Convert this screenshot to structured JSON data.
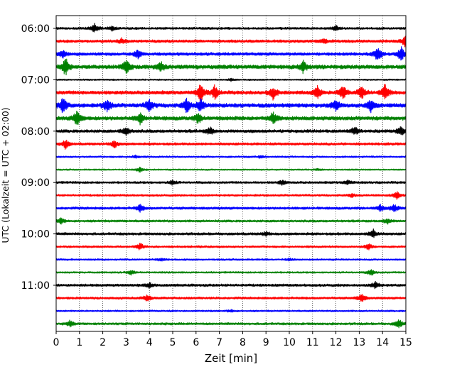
{
  "chart_data": {
    "type": "line",
    "subtype": "seismogram-helicorder",
    "xlabel": "Zeit  [min]",
    "ylabel": "UTC (Lokalzeit = UTC + 02:00)",
    "xlim": [
      0,
      15
    ],
    "x_ticks": [
      0,
      1,
      2,
      3,
      4,
      5,
      6,
      7,
      8,
      9,
      10,
      11,
      12,
      13,
      14,
      15
    ],
    "x_tick_labels": [
      "0",
      "1",
      "2",
      "3",
      "4",
      "5",
      "6",
      "7",
      "8",
      "9",
      "10",
      "11",
      "12",
      "13",
      "14",
      "15"
    ],
    "y_tick_labels": [
      "06:00",
      "07:00",
      "08:00",
      "09:00",
      "10:00",
      "11:00"
    ],
    "vertical_grid": true,
    "grid_style": "dotted",
    "row_minutes": 15,
    "color_cycle": [
      "#000000",
      "#ff0000",
      "#0000ff",
      "#008000"
    ],
    "traces": [
      {
        "start": "06:00",
        "color": "#000000",
        "amp": 0.45,
        "bursts": [
          [
            1.65,
            1.3
          ],
          [
            12.0,
            0.7
          ],
          [
            2.4,
            0.5
          ]
        ]
      },
      {
        "start": "06:15",
        "color": "#ff0000",
        "amp": 0.55,
        "bursts": [
          [
            15.0,
            1.5
          ],
          [
            2.8,
            0.6
          ],
          [
            11.5,
            0.6
          ]
        ]
      },
      {
        "start": "06:30",
        "color": "#0000ff",
        "amp": 0.6,
        "bursts": [
          [
            0.3,
            1.0
          ],
          [
            3.5,
            0.9
          ],
          [
            13.8,
            1.8
          ],
          [
            14.8,
            1.5
          ]
        ]
      },
      {
        "start": "06:45",
        "color": "#008000",
        "amp": 0.8,
        "bursts": [
          [
            0.4,
            1.4
          ],
          [
            3.0,
            1.2
          ],
          [
            4.5,
            0.8
          ],
          [
            10.6,
            0.9
          ]
        ]
      },
      {
        "start": "07:00",
        "color": "#000000",
        "amp": 0.3,
        "bursts": [
          [
            7.5,
            0.5
          ]
        ]
      },
      {
        "start": "07:15",
        "color": "#ff0000",
        "amp": 0.7,
        "bursts": [
          [
            6.2,
            1.6
          ],
          [
            6.8,
            1.2
          ],
          [
            9.3,
            1.2
          ],
          [
            11.2,
            1.1
          ],
          [
            12.3,
            1.3
          ],
          [
            13.1,
            1.1
          ],
          [
            14.1,
            1.6
          ]
        ]
      },
      {
        "start": "07:30",
        "color": "#0000ff",
        "amp": 0.8,
        "bursts": [
          [
            0.3,
            1.3
          ],
          [
            2.2,
            1.0
          ],
          [
            4.0,
            0.9
          ],
          [
            5.6,
            1.1
          ],
          [
            6.2,
            1.0
          ],
          [
            12.0,
            0.9
          ],
          [
            13.5,
            0.9
          ]
        ]
      },
      {
        "start": "07:45",
        "color": "#008000",
        "amp": 0.75,
        "bursts": [
          [
            0.9,
            1.4
          ],
          [
            3.6,
            0.9
          ],
          [
            6.1,
            0.8
          ],
          [
            9.3,
            1.1
          ]
        ]
      },
      {
        "start": "08:00",
        "color": "#000000",
        "amp": 0.6,
        "bursts": [
          [
            3.0,
            0.9
          ],
          [
            6.6,
            0.8
          ],
          [
            12.8,
            0.9
          ],
          [
            14.8,
            1.1
          ]
        ]
      },
      {
        "start": "08:15",
        "color": "#ff0000",
        "amp": 0.5,
        "bursts": [
          [
            0.4,
            1.2
          ],
          [
            2.5,
            1.0
          ]
        ]
      },
      {
        "start": "08:30",
        "color": "#0000ff",
        "amp": 0.35,
        "bursts": [
          [
            3.4,
            0.5
          ],
          [
            8.8,
            0.4
          ]
        ]
      },
      {
        "start": "08:45",
        "color": "#008000",
        "amp": 0.3,
        "bursts": [
          [
            3.6,
            1.2
          ],
          [
            11.2,
            0.4
          ]
        ]
      },
      {
        "start": "09:00",
        "color": "#000000",
        "amp": 0.45,
        "bursts": [
          [
            5.0,
            0.7
          ],
          [
            9.7,
            0.7
          ],
          [
            12.5,
            0.6
          ]
        ]
      },
      {
        "start": "09:15",
        "color": "#ff0000",
        "amp": 0.4,
        "bursts": [
          [
            14.6,
            1.3
          ],
          [
            12.7,
            0.5
          ]
        ]
      },
      {
        "start": "09:30",
        "color": "#0000ff",
        "amp": 0.5,
        "bursts": [
          [
            3.6,
            0.9
          ],
          [
            13.9,
            0.8
          ],
          [
            14.5,
            1.0
          ]
        ]
      },
      {
        "start": "09:45",
        "color": "#008000",
        "amp": 0.45,
        "bursts": [
          [
            0.2,
            0.9
          ],
          [
            14.2,
            0.8
          ]
        ]
      },
      {
        "start": "10:00",
        "color": "#000000",
        "amp": 0.5,
        "bursts": [
          [
            13.6,
            1.2
          ],
          [
            9.0,
            0.5
          ]
        ]
      },
      {
        "start": "10:15",
        "color": "#ff0000",
        "amp": 0.4,
        "bursts": [
          [
            3.6,
            1.1
          ],
          [
            13.4,
            1.0
          ]
        ]
      },
      {
        "start": "10:30",
        "color": "#0000ff",
        "amp": 0.35,
        "bursts": [
          [
            4.5,
            0.5
          ],
          [
            10.0,
            0.4
          ]
        ]
      },
      {
        "start": "10:45",
        "color": "#008000",
        "amp": 0.35,
        "bursts": [
          [
            3.2,
            0.9
          ],
          [
            13.5,
            1.2
          ]
        ]
      },
      {
        "start": "11:00",
        "color": "#000000",
        "amp": 0.5,
        "bursts": [
          [
            4.0,
            0.6
          ],
          [
            13.7,
            0.9
          ]
        ]
      },
      {
        "start": "11:15",
        "color": "#ff0000",
        "amp": 0.45,
        "bursts": [
          [
            3.9,
            1.0
          ],
          [
            13.1,
            1.3
          ]
        ]
      },
      {
        "start": "11:30",
        "color": "#0000ff",
        "amp": 0.35,
        "bursts": [
          [
            7.5,
            0.4
          ]
        ]
      },
      {
        "start": "11:45",
        "color": "#008000",
        "amp": 0.45,
        "bursts": [
          [
            0.6,
            0.9
          ],
          [
            14.7,
            1.3
          ]
        ]
      }
    ]
  }
}
